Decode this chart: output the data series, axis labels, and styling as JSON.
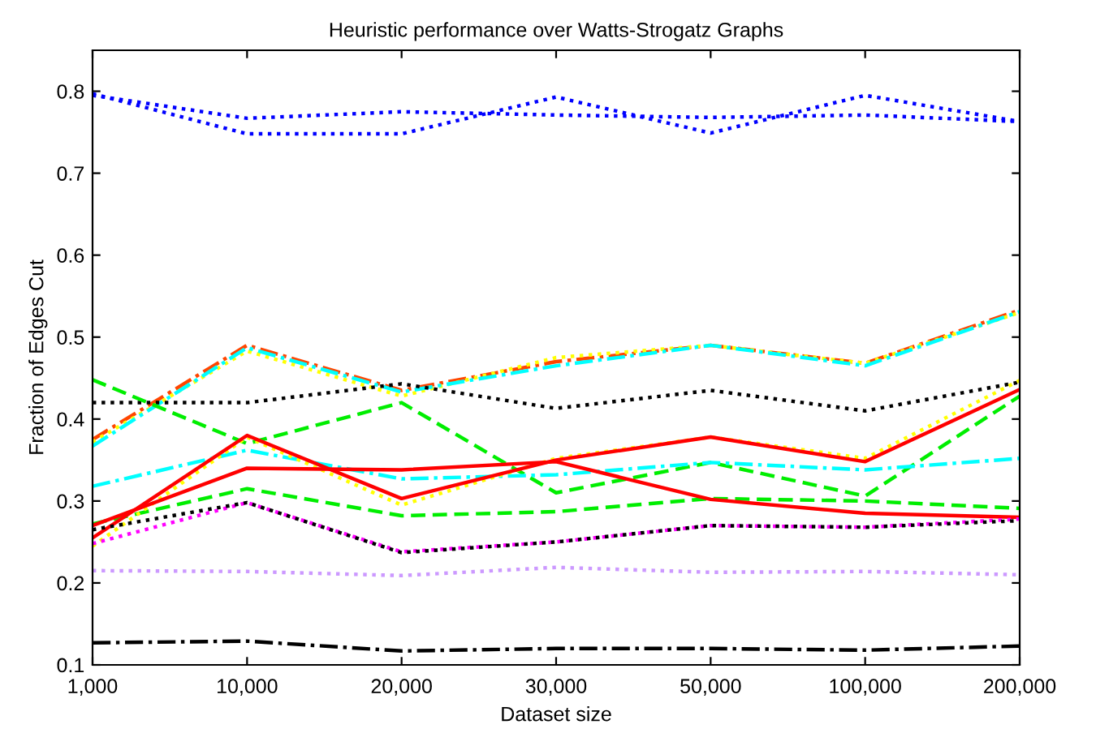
{
  "chart_data": {
    "type": "line",
    "title": "Heuristic performance over Watts-Strogatz Graphs",
    "xlabel": "Dataset size",
    "ylabel": "Fraction of Edges Cut",
    "categories": [
      "1,000",
      "10,000",
      "20,000",
      "30,000",
      "50,000",
      "100,000",
      "200,000"
    ],
    "ylim": [
      0.1,
      0.85
    ],
    "yticks": [
      0.1,
      0.2,
      0.3,
      0.4,
      0.5,
      0.6,
      0.7,
      0.8
    ],
    "grid": false,
    "marker": "none",
    "series": [
      {
        "color": "#0000ff",
        "line_style": "dotted",
        "values": [
          0.795,
          0.767,
          0.775,
          0.771,
          0.768,
          0.771,
          0.763
        ]
      },
      {
        "color": "#0000ff",
        "line_style": "dotted",
        "values": [
          0.797,
          0.748,
          0.748,
          0.793,
          0.749,
          0.795,
          0.763
        ]
      },
      {
        "color": "#ff4500",
        "line_style": "dashdot",
        "values": [
          0.375,
          0.49,
          0.435,
          0.47,
          0.49,
          0.468,
          0.533
        ]
      },
      {
        "color": "#ffff00",
        "line_style": "dotted",
        "values": [
          0.372,
          0.483,
          0.428,
          0.475,
          0.49,
          0.468,
          0.53
        ]
      },
      {
        "color": "#00ffff",
        "line_style": "dashdot",
        "values": [
          0.367,
          0.487,
          0.433,
          0.465,
          0.49,
          0.465,
          0.531
        ]
      },
      {
        "color": "#000000",
        "line_style": "dotted",
        "values": [
          0.42,
          0.42,
          0.443,
          0.413,
          0.435,
          0.41,
          0.445
        ]
      },
      {
        "color": "#00ee00",
        "line_style": "dashed",
        "values": [
          0.448,
          0.37,
          0.42,
          0.31,
          0.347,
          0.306,
          0.428
        ]
      },
      {
        "color": "#00ee00",
        "line_style": "dashed",
        "values": [
          0.272,
          0.315,
          0.282,
          0.287,
          0.303,
          0.3,
          0.291
        ]
      },
      {
        "color": "#00ffff",
        "line_style": "dashdot",
        "values": [
          0.318,
          0.362,
          0.327,
          0.332,
          0.347,
          0.338,
          0.352
        ]
      },
      {
        "color": "#ffff00",
        "line_style": "dotted",
        "values": [
          0.245,
          0.378,
          0.295,
          0.352,
          0.378,
          0.352,
          0.447
        ]
      },
      {
        "color": "#ff0000",
        "line_style": "solid",
        "values": [
          0.255,
          0.38,
          0.303,
          0.35,
          0.378,
          0.348,
          0.436
        ]
      },
      {
        "color": "#ff0000",
        "line_style": "solid",
        "values": [
          0.27,
          0.34,
          0.338,
          0.348,
          0.302,
          0.285,
          0.28
        ]
      },
      {
        "color": "#ff00ff",
        "line_style": "dotted",
        "values": [
          0.248,
          0.298,
          0.238,
          0.25,
          0.27,
          0.268,
          0.278
        ]
      },
      {
        "color": "#000000",
        "line_style": "dotted",
        "values": [
          0.265,
          0.298,
          0.237,
          0.25,
          0.27,
          0.268,
          0.276
        ]
      },
      {
        "color": "#cc99ff",
        "line_style": "dotted",
        "values": [
          0.215,
          0.214,
          0.209,
          0.219,
          0.213,
          0.214,
          0.21
        ]
      },
      {
        "color": "#000000",
        "line_style": "dashdot",
        "values": [
          0.127,
          0.129,
          0.117,
          0.12,
          0.12,
          0.118,
          0.123
        ]
      }
    ]
  }
}
